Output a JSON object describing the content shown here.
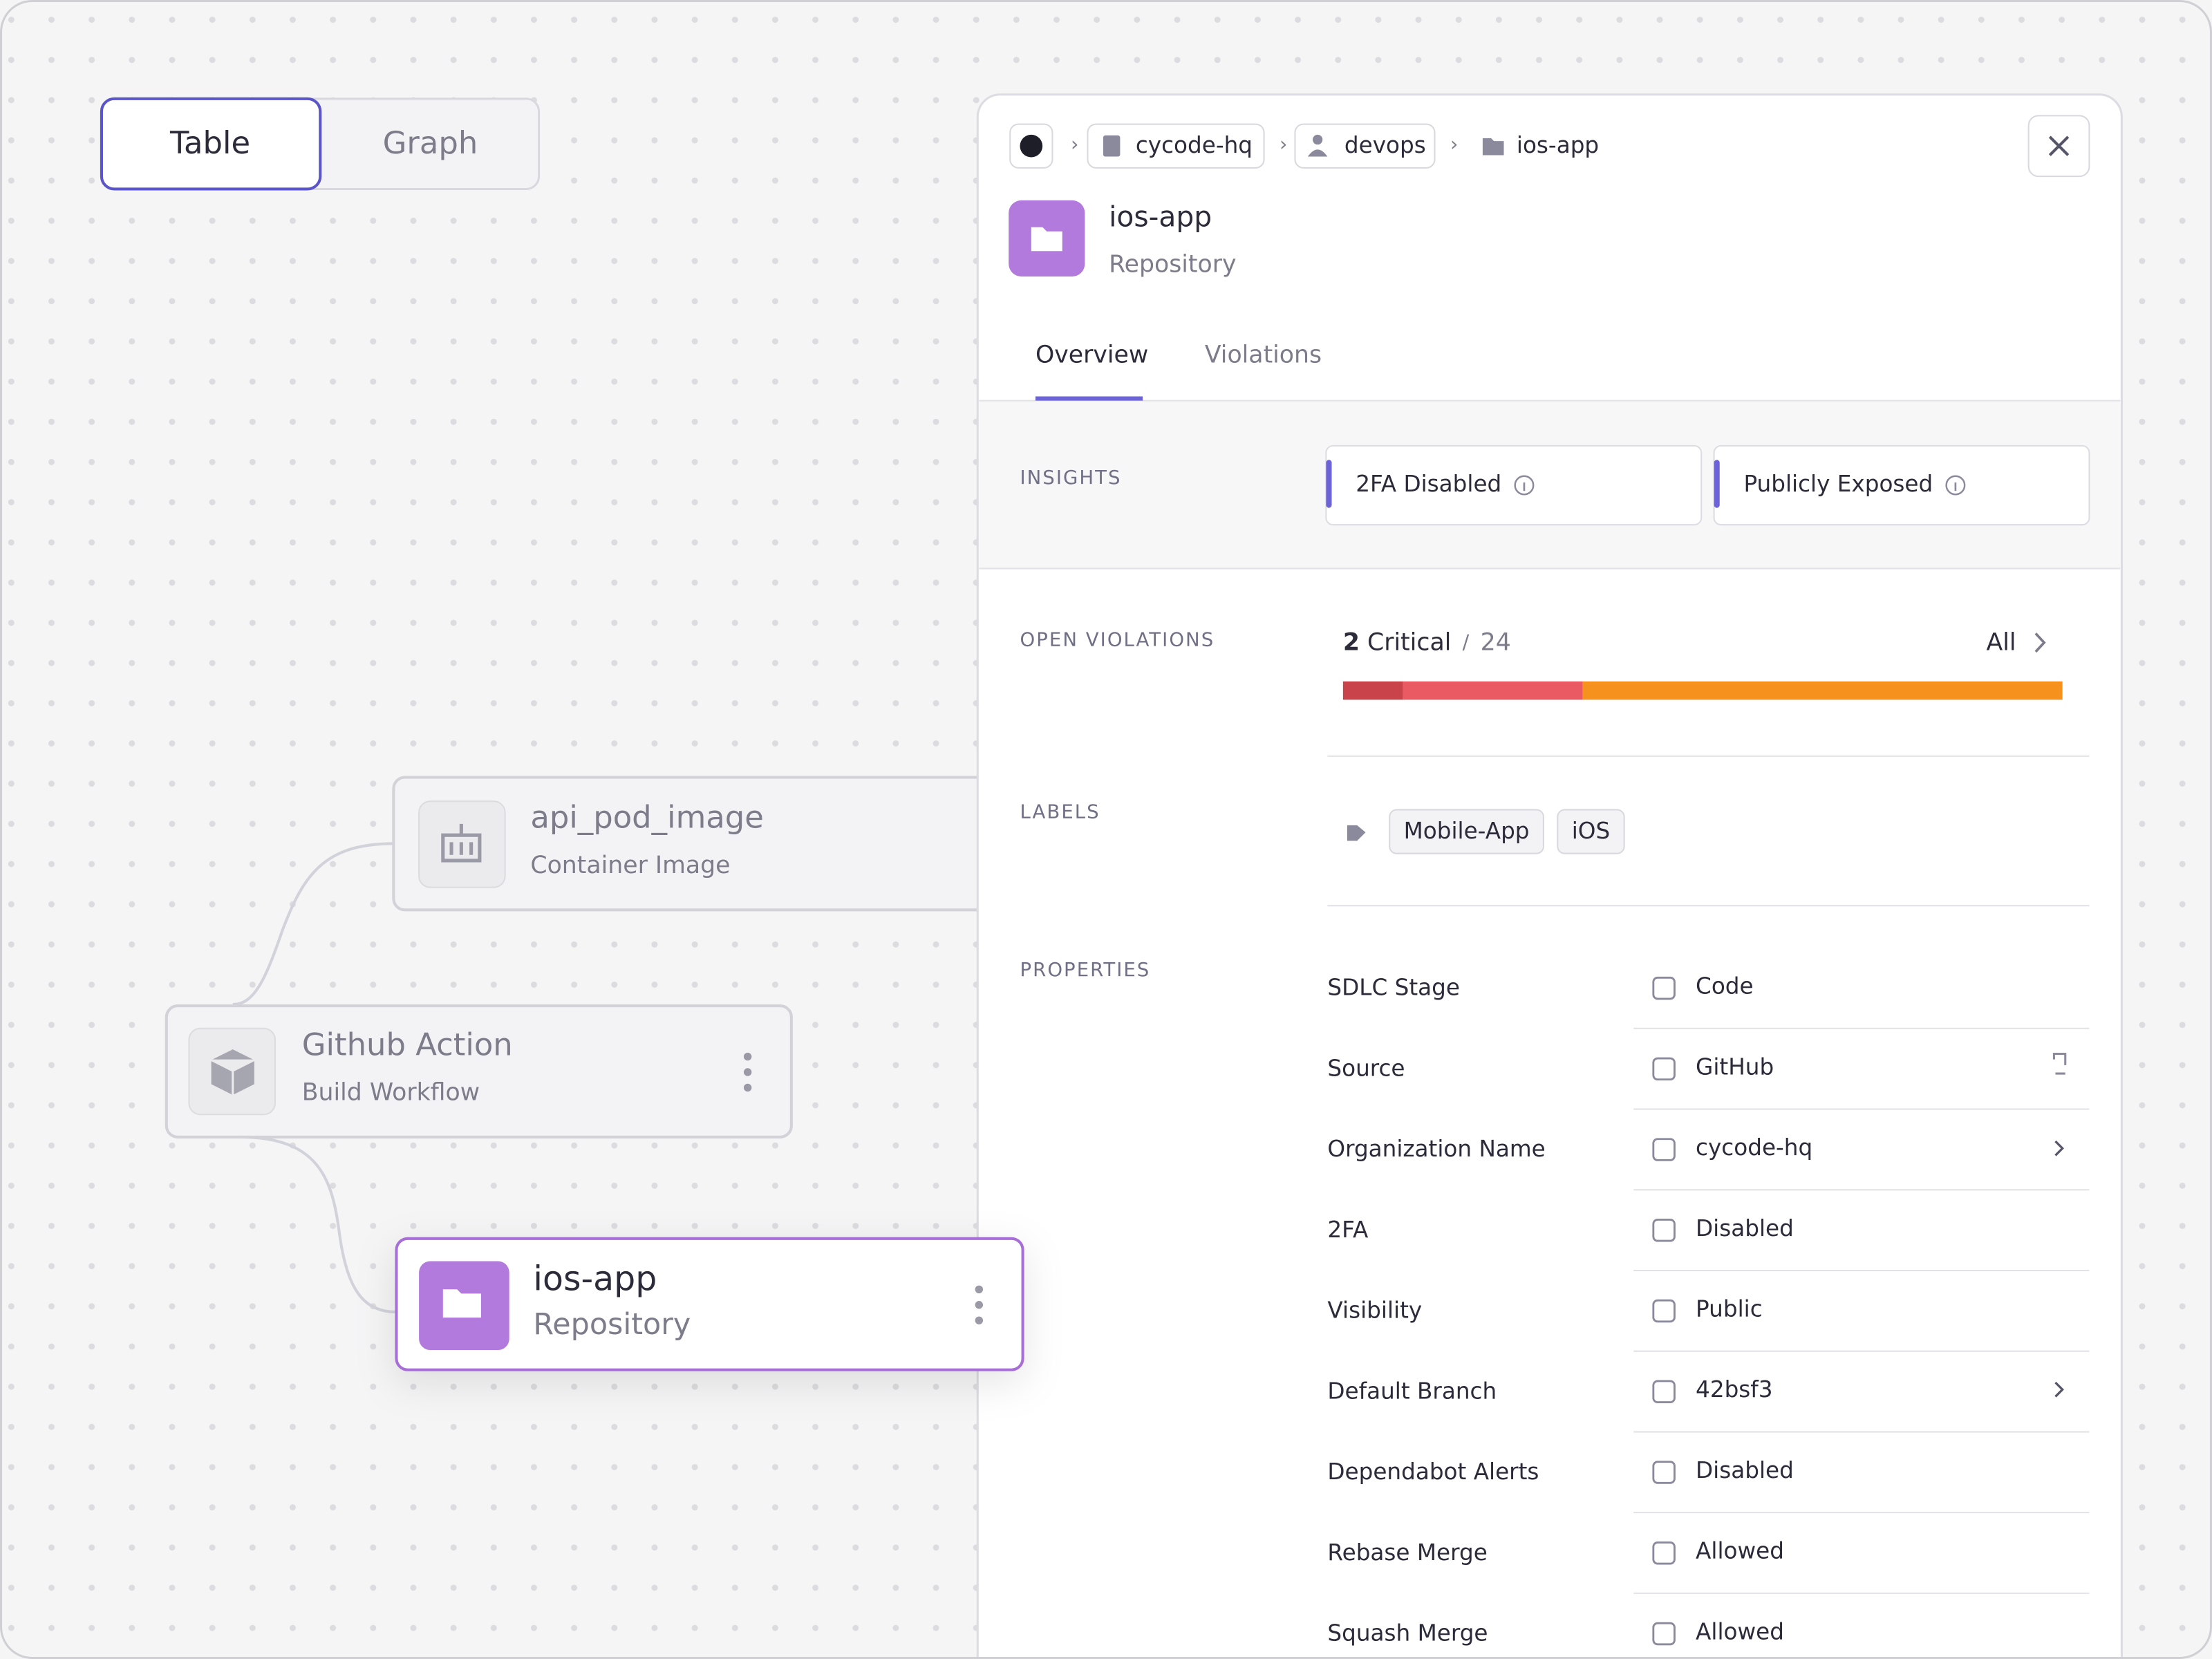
{
  "toggle": {
    "options": [
      "Table",
      "Graph"
    ]
  },
  "graph": {
    "nodes": [
      {
        "label": "api_pod_image",
        "sublabel": "Container Image"
      },
      {
        "label": "Github Action",
        "sublabel": "Build Workflow"
      },
      {
        "label": "ios-app",
        "sublabel": "Repository"
      }
    ]
  },
  "panel": {
    "breadcrumb": [
      "cycode-hq",
      "devops",
      "ios-app"
    ],
    "title": "ios-app",
    "subtitle": "Repository",
    "tabs": [
      "Overview",
      "Violations"
    ],
    "insights": {
      "heading": "INSIGHTS",
      "items": [
        "2FA Disabled",
        "Publicly Exposed"
      ]
    },
    "violations": {
      "heading": "OPEN VIOLATIONS",
      "count": "2",
      "severity": "Critical",
      "total": "24",
      "link": "All",
      "segments": [
        {
          "value": 2,
          "color": "#c9444a"
        },
        {
          "value": 6,
          "color": "#ea5a62"
        },
        {
          "value": 16,
          "color": "#f7911e"
        }
      ]
    },
    "labels": {
      "heading": "LABELS",
      "items": [
        "Mobile-App",
        "iOS"
      ]
    },
    "properties": {
      "heading": "PROPERTIES",
      "rows": [
        {
          "label": "SDLC Stage",
          "value": "Code"
        },
        {
          "label": "Source",
          "value": "GitHub"
        },
        {
          "label": "Organization Name",
          "value": "cycode-hq"
        },
        {
          "label": "2FA",
          "value": "Disabled"
        },
        {
          "label": "Visibility",
          "value": "Public"
        },
        {
          "label": "Default Branch",
          "value": "42bsf3"
        },
        {
          "label": "Dependabot Alerts",
          "value": "Disabled"
        },
        {
          "label": "Rebase Merge",
          "value": "Allowed"
        },
        {
          "label": "Squash Merge",
          "value": "Allowed"
        }
      ]
    }
  }
}
